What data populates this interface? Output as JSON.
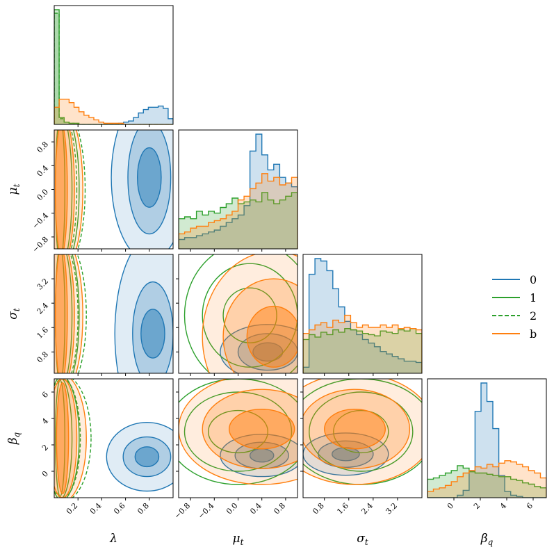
{
  "chart_data": {
    "type": "corner",
    "parameters": [
      {
        "key": "lambda",
        "label": "λ",
        "ticks": [
          "0.2",
          "0.4",
          "0.6",
          "0.8"
        ],
        "tick_values": [
          0.2,
          0.4,
          0.6,
          0.8
        ],
        "range": [
          0.0,
          1.0
        ]
      },
      {
        "key": "mu_t",
        "label": "μ",
        "sub": "t",
        "ticks": [
          "−0.8",
          "−0.4",
          "0.0",
          "0.4",
          "0.8"
        ],
        "tick_values": [
          -0.8,
          -0.4,
          0.0,
          0.4,
          0.8
        ],
        "range": [
          -1.0,
          1.0
        ]
      },
      {
        "key": "sigma_t",
        "label": "σ",
        "sub": "t",
        "ticks": [
          "0.8",
          "1.6",
          "2.4",
          "3.2"
        ],
        "tick_values": [
          0.8,
          1.6,
          2.4,
          3.2
        ],
        "range": [
          0.1,
          4.0
        ]
      },
      {
        "key": "beta_q",
        "label": "β",
        "sub": "q",
        "ticks": [
          "0",
          "2",
          "4",
          "6"
        ],
        "tick_values": [
          0,
          2,
          4,
          6
        ],
        "range": [
          -2.0,
          7.0
        ]
      }
    ],
    "series": [
      {
        "name": "0",
        "color": "#1f77b4",
        "dash": "solid"
      },
      {
        "name": "1",
        "color": "#2ca02c",
        "dash": "solid"
      },
      {
        "name": "2",
        "color": "#2ca02c",
        "dash": "dashed"
      },
      {
        "name": "b",
        "color": "#ff7f0e",
        "dash": "solid"
      }
    ],
    "histograms": {
      "lambda": {
        "0": [
          0,
          0,
          0,
          0,
          0,
          0,
          0,
          0,
          0,
          0,
          0,
          0,
          0,
          0.01,
          0.02,
          0.03,
          0.06,
          0.1,
          0.13,
          0.15,
          0.15,
          0.16,
          0.14,
          0.05
        ],
        "1": [
          1.0,
          0.06,
          0.02,
          0.01,
          0.01,
          0,
          0,
          0,
          0,
          0,
          0,
          0,
          0,
          0,
          0,
          0,
          0,
          0,
          0,
          0,
          0,
          0,
          0,
          0
        ],
        "2": [
          0.97,
          0.05,
          0.02,
          0.01,
          0,
          0,
          0,
          0,
          0,
          0,
          0,
          0,
          0,
          0,
          0,
          0,
          0,
          0,
          0,
          0,
          0,
          0,
          0,
          0
        ],
        "b": [
          0.15,
          0.22,
          0.22,
          0.19,
          0.15,
          0.11,
          0.08,
          0.06,
          0.04,
          0.02,
          0.01,
          0.01,
          0.01,
          0.01,
          0,
          0,
          0,
          0,
          0,
          0,
          0,
          0,
          0,
          0
        ]
      },
      "mu_t": {
        "0": [
          0.05,
          0.06,
          0.06,
          0.07,
          0.08,
          0.09,
          0.1,
          0.12,
          0.14,
          0.16,
          0.18,
          0.23,
          0.52,
          0.61,
          0.5,
          0.42,
          0.45,
          0.38,
          0.35,
          0.33
        ],
        "1": [
          0.16,
          0.17,
          0.16,
          0.2,
          0.18,
          0.2,
          0.19,
          0.22,
          0.24,
          0.27,
          0.24,
          0.25,
          0.26,
          0.25,
          0.3,
          0.26,
          0.24,
          0.26,
          0.28,
          0.3
        ],
        "b": [
          0.08,
          0.09,
          0.11,
          0.12,
          0.12,
          0.14,
          0.15,
          0.16,
          0.18,
          0.2,
          0.26,
          0.28,
          0.32,
          0.35,
          0.4,
          0.36,
          0.38,
          0.34,
          0.35,
          0.38
        ]
      },
      "sigma_t": {
        "0": [
          0.05,
          0.82,
          0.95,
          0.93,
          0.85,
          0.7,
          0.55,
          0.43,
          0.36,
          0.32,
          0.28,
          0.25,
          0.22,
          0.18,
          0.16,
          0.14,
          0.12,
          0.1,
          0.1,
          0.09
        ],
        "1": [
          0.28,
          0.32,
          0.3,
          0.34,
          0.32,
          0.36,
          0.34,
          0.37,
          0.36,
          0.35,
          0.33,
          0.32,
          0.31,
          0.35,
          0.34,
          0.33,
          0.36,
          0.35,
          0.37,
          0.33
        ],
        "b": [
          0.33,
          0.36,
          0.4,
          0.42,
          0.38,
          0.44,
          0.42,
          0.48,
          0.42,
          0.38,
          0.4,
          0.38,
          0.38,
          0.4,
          0.38,
          0.4,
          0.37,
          0.38,
          0.37,
          0.36
        ]
      },
      "beta_q": {
        "0": [
          0,
          0,
          0,
          0,
          0,
          0.02,
          0.06,
          0.22,
          0.7,
          0.93,
          0.78,
          0.56,
          0.18,
          0.05,
          0.02,
          0.01,
          0,
          0,
          0,
          0
        ],
        "1": [
          0.15,
          0.16,
          0.18,
          0.2,
          0.22,
          0.26,
          0.24,
          0.21,
          0.2,
          0.2,
          0.19,
          0.18,
          0.17,
          0.17,
          0.15,
          0.14,
          0.12,
          0.11,
          0.09,
          0.08
        ],
        "b": [
          0.05,
          0.07,
          0.08,
          0.1,
          0.13,
          0.17,
          0.2,
          0.22,
          0.25,
          0.24,
          0.27,
          0.25,
          0.28,
          0.3,
          0.29,
          0.27,
          0.25,
          0.22,
          0.2,
          0.16
        ]
      }
    },
    "contours": {
      "mu_t|lambda": {
        "0": {
          "x": 0.8,
          "y": 0.2,
          "rx": [
            0.32,
            0.18,
            0.1
          ],
          "ry": [
            1.4,
            0.95,
            0.5
          ]
        },
        "b": {
          "x": 0.06,
          "y": 0.0,
          "rx": [
            0.18,
            0.11,
            0.05
          ],
          "ry": [
            1.4,
            1.3,
            1.1
          ]
        },
        "1": {
          "x": 0.05,
          "y": 0.0,
          "rx": [
            0.16,
            0.1,
            0.04
          ],
          "ry": [
            1.4,
            1.3,
            1.2
          ]
        },
        "2": {
          "x": 0.06,
          "y": 0.0,
          "rx": [
            0.2,
            0.13
          ],
          "ry": [
            1.4,
            1.3
          ]
        }
      },
      "sigma_t|lambda": {
        "0": {
          "x": 0.83,
          "y": 1.4,
          "rx": [
            0.32,
            0.17,
            0.1
          ],
          "ry": [
            3.2,
            1.7,
            0.8
          ]
        },
        "b": {
          "x": 0.06,
          "y": 2.0,
          "rx": [
            0.18,
            0.11,
            0.05
          ],
          "ry": [
            2.6,
            2.4,
            2.2
          ]
        },
        "1": {
          "x": 0.05,
          "y": 2.0,
          "rx": [
            0.16,
            0.1,
            0.04
          ],
          "ry": [
            2.6,
            2.4,
            2.2
          ]
        },
        "2": {
          "x": 0.06,
          "y": 2.0,
          "rx": [
            0.21,
            0.14
          ],
          "ry": [
            2.6,
            2.4
          ]
        }
      },
      "sigma_t|mu_t": {
        "b": {
          "x": 0.6,
          "y": 1.3,
          "rx": [
            1.2,
            0.85,
            0.45
          ],
          "ry": [
            2.8,
            1.9,
            1.0
          ]
        },
        "1": {
          "x": 0.2,
          "y": 2.0,
          "rx": [
            1.1,
            0.8,
            0.45
          ],
          "ry": [
            2.4,
            1.7,
            0.9
          ]
        },
        "0": {
          "x": 0.5,
          "y": 0.8,
          "rx": [
            0.8,
            0.5,
            0.25
          ],
          "ry": [
            0.9,
            0.6,
            0.3
          ]
        }
      },
      "beta_q|lambda": {
        "0": {
          "x": 0.78,
          "y": 1.1,
          "rx": [
            0.34,
            0.2,
            0.1
          ],
          "ry": [
            2.6,
            1.5,
            0.75
          ]
        },
        "b": {
          "x": 0.07,
          "y": 2.5,
          "rx": [
            0.2,
            0.12,
            0.05
          ],
          "ry": [
            4.8,
            4.5,
            4.2
          ]
        },
        "1": {
          "x": 0.05,
          "y": 2.5,
          "rx": [
            0.16,
            0.1,
            0.04
          ],
          "ry": [
            4.8,
            4.6,
            4.4
          ]
        },
        "2": {
          "x": 0.07,
          "y": 2.5,
          "rx": [
            0.24,
            0.15
          ],
          "ry": [
            4.8,
            4.5
          ]
        }
      },
      "beta_q|mu_t": {
        "b": {
          "x": 0.4,
          "y": 3.2,
          "rx": [
            1.4,
            1.0,
            0.55
          ],
          "ry": [
            4.2,
            3.0,
            1.5
          ]
        },
        "1": {
          "x": 0.0,
          "y": 3.0,
          "rx": [
            1.2,
            0.9,
            0.5
          ],
          "ry": [
            4.0,
            3.0,
            1.6
          ]
        },
        "0": {
          "x": 0.4,
          "y": 1.2,
          "rx": [
            0.7,
            0.45,
            0.2
          ],
          "ry": [
            1.6,
            1.0,
            0.5
          ]
        }
      },
      "beta_q|sigma_t": {
        "b": {
          "x": 1.8,
          "y": 3.2,
          "rx": [
            2.6,
            1.8,
            1.0
          ],
          "ry": [
            4.2,
            3.0,
            1.5
          ]
        },
        "1": {
          "x": 2.0,
          "y": 3.0,
          "rx": [
            2.4,
            1.7,
            0.9
          ],
          "ry": [
            4.0,
            3.0,
            1.6
          ]
        },
        "0": {
          "x": 1.5,
          "y": 1.3,
          "rx": [
            1.4,
            0.9,
            0.45
          ],
          "ry": [
            1.6,
            1.0,
            0.5
          ]
        }
      }
    },
    "legend": {
      "placement": "right"
    }
  }
}
